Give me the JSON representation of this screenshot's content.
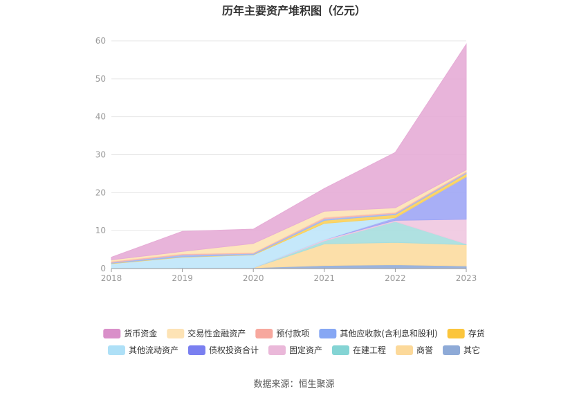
{
  "chart_data": {
    "type": "area",
    "stacked": true,
    "title": "历年主要资产堆积图（亿元）",
    "xlabel": "",
    "ylabel": "",
    "x": [
      "2018",
      "2019",
      "2020",
      "2021",
      "2022",
      "2023"
    ],
    "ylim": [
      0,
      60
    ],
    "yticks": [
      0,
      10,
      20,
      30,
      40,
      50,
      60
    ],
    "grid": true,
    "legend_position": "bottom",
    "series": [
      {
        "name": "其它",
        "color": "#8fabd9",
        "values": [
          0.1,
          0.2,
          0.2,
          0.8,
          1.0,
          0.7
        ]
      },
      {
        "name": "商誉",
        "color": "#fcdca0",
        "values": [
          0.0,
          0.0,
          0.0,
          5.7,
          5.9,
          5.6
        ]
      },
      {
        "name": "在建工程",
        "color": "#a6dede",
        "values": [
          0.0,
          0.0,
          0.0,
          0.8,
          5.5,
          0.2
        ]
      },
      {
        "name": "固定资产",
        "color": "#f0c8e0",
        "values": [
          0.0,
          0.0,
          0.0,
          0.3,
          0.3,
          6.5
        ]
      },
      {
        "name": "债权投资合计",
        "color": "#9fa6f5",
        "values": [
          0.0,
          0.0,
          0.0,
          0.0,
          0.7,
          11.2
        ]
      },
      {
        "name": "其他流动资产",
        "color": "#bfe6fa",
        "values": [
          1.2,
          2.8,
          3.4,
          4.3,
          0.0,
          0.0
        ]
      },
      {
        "name": "存货",
        "color": "#fbd05a",
        "values": [
          0.1,
          0.1,
          0.1,
          0.8,
          0.8,
          0.8
        ]
      },
      {
        "name": "其他应收款(含利息和股利)",
        "color": "#9db8f5",
        "values": [
          0.2,
          0.5,
          0.3,
          0.4,
          0.3,
          0.3
        ]
      },
      {
        "name": "预付款项",
        "color": "#f7b7ae",
        "values": [
          0.3,
          0.3,
          0.2,
          0.4,
          0.3,
          0.3
        ]
      },
      {
        "name": "交易性金融资产",
        "color": "#fde3b5",
        "values": [
          0.4,
          0.6,
          2.4,
          1.6,
          1.2,
          0.4
        ]
      },
      {
        "name": "货币资金",
        "color": "#e6acd6",
        "values": [
          0.7,
          5.3,
          3.8,
          6.0,
          14.6,
          33.1
        ]
      }
    ],
    "legend": [
      {
        "name": "货币资金",
        "color": "#d98fc9"
      },
      {
        "name": "交易性金融资产",
        "color": "#fde3b5"
      },
      {
        "name": "预付款项",
        "color": "#f7a89e"
      },
      {
        "name": "其他应收款(含利息和股利)",
        "color": "#86a7f4"
      },
      {
        "name": "存货",
        "color": "#fbc53c"
      },
      {
        "name": "其他流动资产",
        "color": "#aee0f7"
      },
      {
        "name": "债权投资合计",
        "color": "#7a7ff0"
      },
      {
        "name": "固定资产",
        "color": "#eab8d9"
      },
      {
        "name": "在建工程",
        "color": "#84d4d4"
      },
      {
        "name": "商誉",
        "color": "#fcd99a"
      },
      {
        "name": "其它",
        "color": "#8eaad7"
      }
    ],
    "source": "数据来源：恒生聚源"
  }
}
